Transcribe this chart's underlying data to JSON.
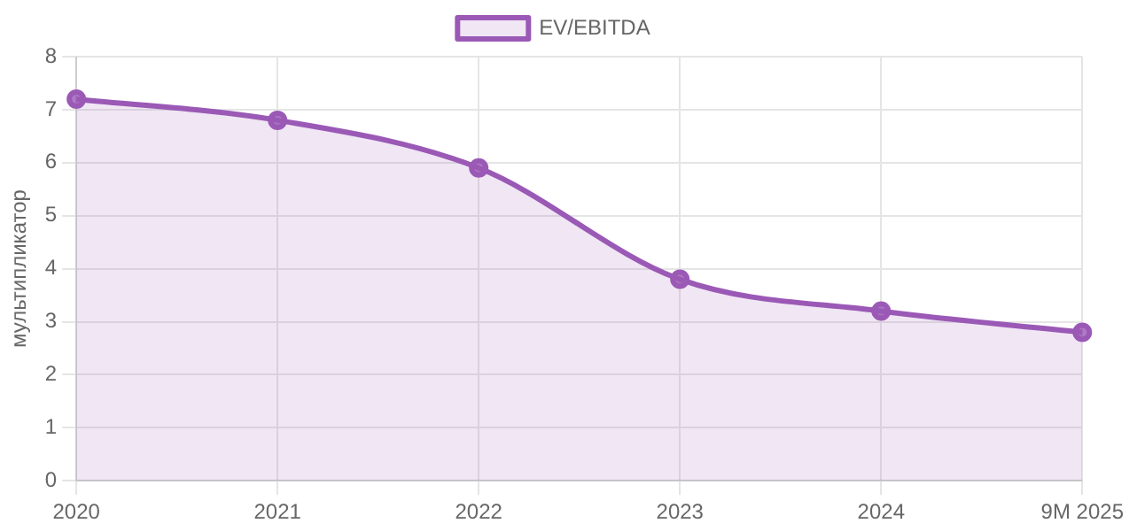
{
  "chart_data": {
    "type": "area",
    "ylabel": "мультипликатор",
    "categories": [
      "2020",
      "2021",
      "2022",
      "2023",
      "2024",
      "9M 2025"
    ],
    "series": [
      {
        "name": "EV/EBITDA",
        "color": "#9b59b6",
        "values": [
          7.2,
          6.8,
          5.9,
          3.8,
          3.2,
          2.8
        ]
      }
    ],
    "ylim": [
      0,
      8
    ],
    "yticks": [
      0,
      1,
      2,
      3,
      4,
      5,
      6,
      7,
      8
    ],
    "grid": true,
    "legend": "top",
    "marker": "circle",
    "line_style": "solid"
  }
}
